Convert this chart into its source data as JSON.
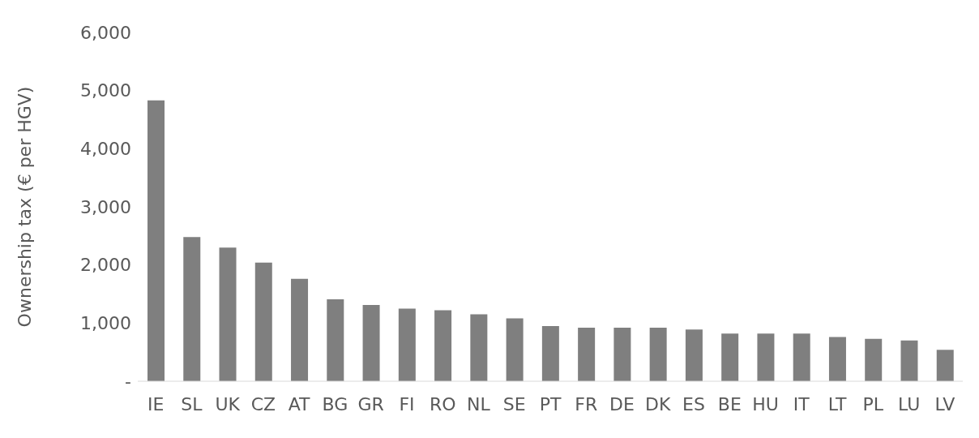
{
  "chart_data": {
    "type": "bar",
    "ylabel": "Ownership tax (€ per HGV)",
    "categories": [
      "IE",
      "SL",
      "UK",
      "CZ",
      "AT",
      "BG",
      "GR",
      "FI",
      "RO",
      "NL",
      "SE",
      "PT",
      "FR",
      "DE",
      "DK",
      "ES",
      "BE",
      "HU",
      "IT",
      "LT",
      "PL",
      "LU",
      "LV"
    ],
    "values": [
      4830,
      2480,
      2300,
      2040,
      1760,
      1410,
      1310,
      1250,
      1220,
      1150,
      1080,
      950,
      920,
      920,
      920,
      890,
      820,
      820,
      820,
      760,
      730,
      700,
      540
    ],
    "color": "#7f7f7f",
    "ylim": [
      0,
      6000
    ],
    "yticks": [
      {
        "value": 0,
        "label": "-"
      },
      {
        "value": 1000,
        "label": "1,000"
      },
      {
        "value": 2000,
        "label": "2,000"
      },
      {
        "value": 3000,
        "label": "3,000"
      },
      {
        "value": 4000,
        "label": "4,000"
      },
      {
        "value": 5000,
        "label": "5,000"
      },
      {
        "value": 6000,
        "label": "6,000"
      }
    ],
    "grid": false
  }
}
